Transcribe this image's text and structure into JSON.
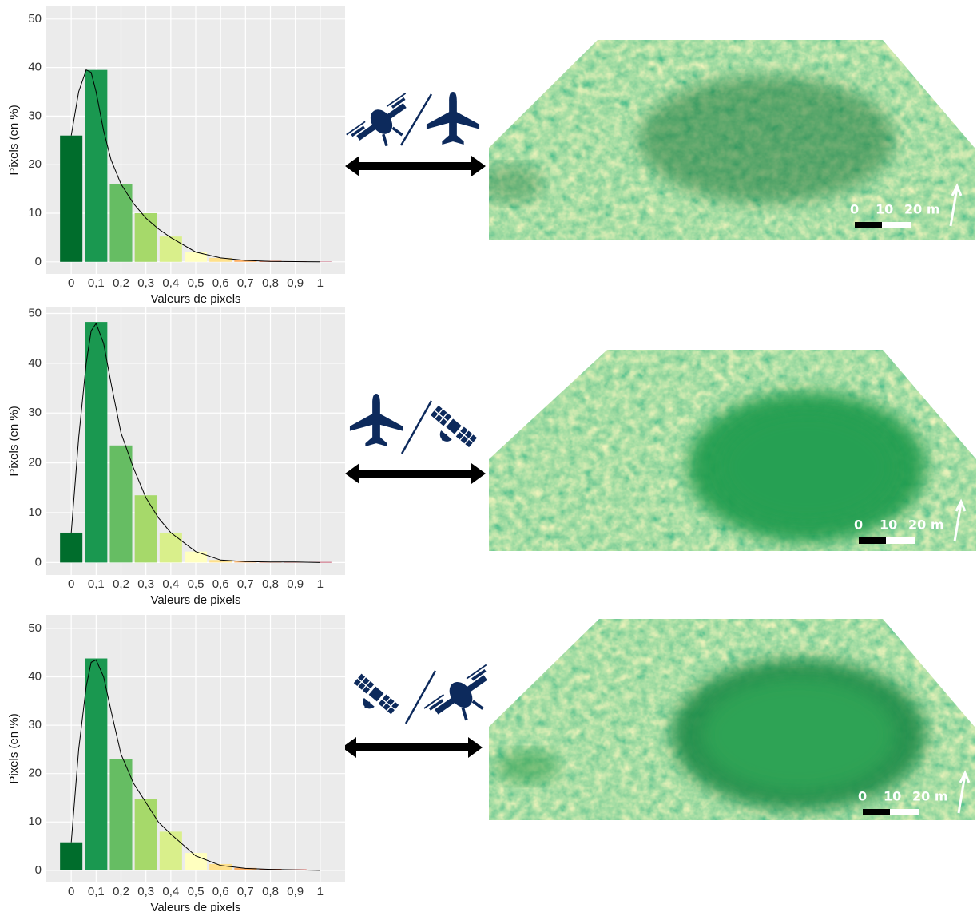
{
  "chart_data": [
    {
      "type": "histogram",
      "xlabel": "Valeurs de pixels",
      "ylabel": "Pixels (en %)",
      "x": [
        0,
        0.1,
        0.2,
        0.3,
        0.4,
        0.5,
        0.6,
        0.7,
        0.8,
        0.9,
        1
      ],
      "values": [
        26,
        39.5,
        16,
        10,
        5.2,
        2,
        0.8,
        0.4,
        0.2,
        0.1,
        0.05
      ],
      "colors": [
        "#006d2c",
        "#1a9850",
        "#66bd63",
        "#a6d96a",
        "#d9ef8b",
        "#ffffbf",
        "#fee08b",
        "#fdae61",
        "#f46d43",
        "#d73027",
        "#a50026"
      ],
      "density": {
        "x": [
          0,
          0.03,
          0.06,
          0.08,
          0.1,
          0.13,
          0.16,
          0.2,
          0.25,
          0.3,
          0.35,
          0.4,
          0.5,
          0.6,
          0.7,
          0.8,
          0.9,
          1
        ],
        "values": [
          26,
          35,
          39.5,
          39,
          35,
          27,
          21,
          16,
          12,
          9,
          6.8,
          5,
          2,
          0.8,
          0.3,
          0.1,
          0.05,
          0
        ]
      },
      "xlim": [
        -0.1,
        1.1
      ],
      "ylim": [
        -2.5,
        52.6
      ],
      "xticks": [
        0,
        {
          "value": 0.1,
          "label": "0,1"
        },
        {
          "value": 0.2,
          "label": "0,2"
        },
        {
          "value": 0.3,
          "label": "0,3"
        },
        {
          "value": 0.4,
          "label": "0,4"
        },
        {
          "value": 0.5,
          "label": "0,5"
        },
        {
          "value": 0.6,
          "label": "0,6"
        },
        {
          "value": 0.7,
          "label": "0,7"
        },
        {
          "value": 0.8,
          "label": "0,8"
        },
        {
          "value": 0.9,
          "label": "0,9"
        },
        1
      ],
      "yticks": [
        0,
        10,
        20,
        30,
        40,
        50
      ],
      "grid": true
    },
    {
      "type": "histogram",
      "xlabel": "Valeurs de pixels",
      "ylabel": "Pixels (en %)",
      "x": [
        0,
        0.1,
        0.2,
        0.3,
        0.4,
        0.5,
        0.6,
        0.7,
        0.8,
        0.9,
        1
      ],
      "values": [
        6,
        48.3,
        23.5,
        13.5,
        6,
        2.2,
        0.5,
        0.2,
        0.1,
        0.1,
        0.1
      ],
      "colors": [
        "#006d2c",
        "#1a9850",
        "#66bd63",
        "#a6d96a",
        "#d9ef8b",
        "#ffffbf",
        "#fee08b",
        "#fdae61",
        "#f46d43",
        "#d73027",
        "#a50026"
      ],
      "density": {
        "x": [
          0,
          0.03,
          0.06,
          0.08,
          0.1,
          0.13,
          0.16,
          0.2,
          0.25,
          0.3,
          0.35,
          0.4,
          0.5,
          0.6,
          0.7,
          0.8,
          0.9,
          1
        ],
        "values": [
          6,
          25,
          40,
          46.5,
          48,
          44,
          36,
          26,
          19,
          13,
          9,
          6,
          2.2,
          0.5,
          0.2,
          0.1,
          0.1,
          0
        ]
      },
      "xlim": [
        -0.1,
        1.1
      ],
      "ylim": [
        -2.5,
        51.2
      ],
      "xticks": [
        0,
        {
          "value": 0.1,
          "label": "0,1"
        },
        {
          "value": 0.2,
          "label": "0,2"
        },
        {
          "value": 0.3,
          "label": "0,3"
        },
        {
          "value": 0.4,
          "label": "0,4"
        },
        {
          "value": 0.5,
          "label": "0,5"
        },
        {
          "value": 0.6,
          "label": "0,6"
        },
        {
          "value": 0.7,
          "label": "0,7"
        },
        {
          "value": 0.8,
          "label": "0,8"
        },
        {
          "value": 0.9,
          "label": "0,9"
        },
        1
      ],
      "yticks": [
        0,
        10,
        20,
        30,
        40,
        50
      ],
      "grid": true
    },
    {
      "type": "histogram",
      "xlabel": "Valeurs de pixels",
      "ylabel": "Pixels (en %)",
      "x": [
        0,
        0.1,
        0.2,
        0.3,
        0.4,
        0.5,
        0.6,
        0.7,
        0.8,
        0.9,
        1
      ],
      "values": [
        5.8,
        43.8,
        23,
        14.8,
        8,
        3.6,
        1.3,
        0.5,
        0.3,
        0.2,
        0.1
      ],
      "colors": [
        "#006d2c",
        "#1a9850",
        "#66bd63",
        "#a6d96a",
        "#d9ef8b",
        "#ffffbf",
        "#fee08b",
        "#fdae61",
        "#f46d43",
        "#d73027",
        "#a50026"
      ],
      "density": {
        "x": [
          0,
          0.03,
          0.06,
          0.08,
          0.1,
          0.13,
          0.16,
          0.2,
          0.25,
          0.3,
          0.35,
          0.4,
          0.5,
          0.6,
          0.7,
          0.8,
          0.9,
          1
        ],
        "values": [
          5.8,
          25,
          38,
          43,
          43.5,
          40,
          33,
          24,
          18,
          14,
          10,
          7.5,
          3,
          1,
          0.4,
          0.2,
          0.1,
          0
        ]
      },
      "xlim": [
        -0.1,
        1.1
      ],
      "ylim": [
        -2.5,
        52.8
      ],
      "xticks": [
        0,
        {
          "value": 0.1,
          "label": "0,1"
        },
        {
          "value": 0.2,
          "label": "0,2"
        },
        {
          "value": 0.3,
          "label": "0,3"
        },
        {
          "value": 0.4,
          "label": "0,4"
        },
        {
          "value": 0.5,
          "label": "0,5"
        },
        {
          "value": 0.6,
          "label": "0,6"
        },
        {
          "value": 0.7,
          "label": "0,7"
        },
        {
          "value": 0.8,
          "label": "0,8"
        },
        {
          "value": 0.9,
          "label": "0,9"
        },
        1
      ],
      "yticks": [
        0,
        10,
        20,
        30,
        40,
        50
      ],
      "grid": true
    }
  ],
  "maps": [
    {
      "scale_ticks": [
        "0",
        "10",
        "20 m"
      ]
    },
    {
      "scale_ticks": [
        "0",
        "10",
        "20 m"
      ]
    },
    {
      "scale_ticks": [
        "0",
        "10",
        "20 m"
      ]
    }
  ]
}
